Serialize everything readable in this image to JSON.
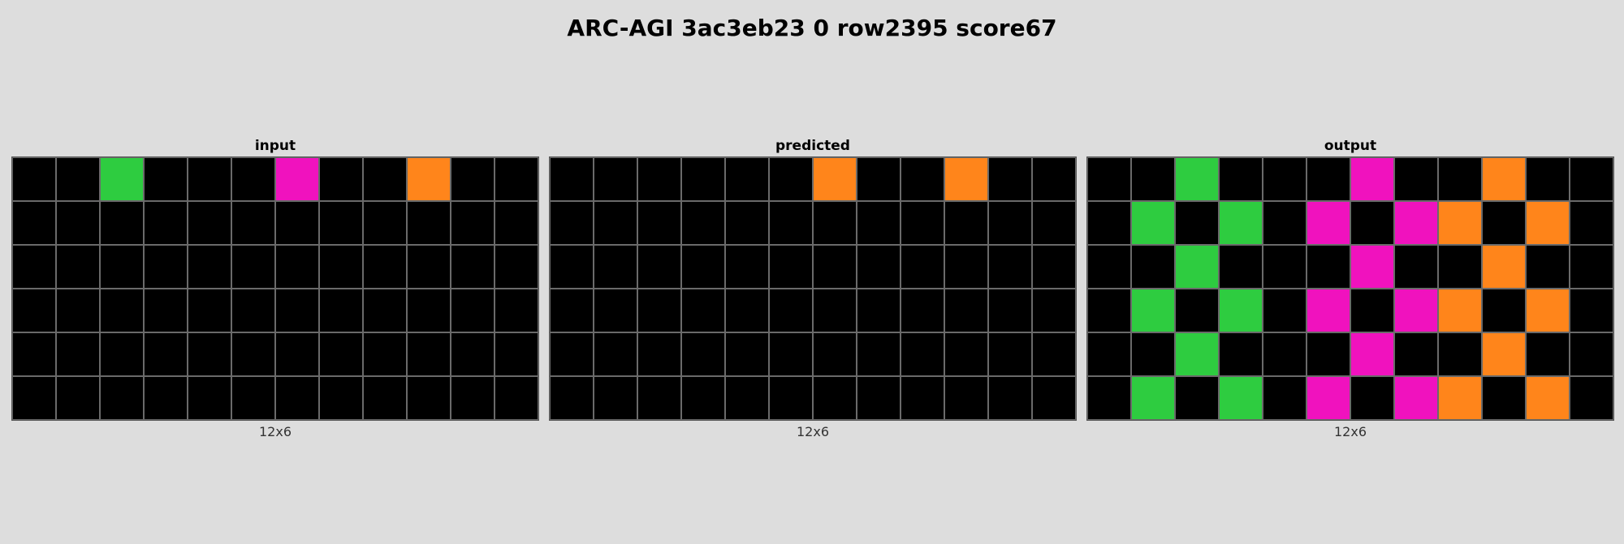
{
  "title": "ARC-AGI 3ac3eb23 0 row2395 score67",
  "palette": {
    "0": "#000000",
    "3": "#2ecc40",
    "6": "#f012be",
    "7": "#ff851b"
  },
  "panels": [
    {
      "title": "input",
      "size": "12x6",
      "grid": [
        [
          0,
          0,
          3,
          0,
          0,
          0,
          6,
          0,
          0,
          7,
          0,
          0
        ],
        [
          0,
          0,
          0,
          0,
          0,
          0,
          0,
          0,
          0,
          0,
          0,
          0
        ],
        [
          0,
          0,
          0,
          0,
          0,
          0,
          0,
          0,
          0,
          0,
          0,
          0
        ],
        [
          0,
          0,
          0,
          0,
          0,
          0,
          0,
          0,
          0,
          0,
          0,
          0
        ],
        [
          0,
          0,
          0,
          0,
          0,
          0,
          0,
          0,
          0,
          0,
          0,
          0
        ],
        [
          0,
          0,
          0,
          0,
          0,
          0,
          0,
          0,
          0,
          0,
          0,
          0
        ]
      ]
    },
    {
      "title": "predicted",
      "size": "12x6",
      "grid": [
        [
          0,
          0,
          0,
          0,
          0,
          0,
          7,
          0,
          0,
          7,
          0,
          0
        ],
        [
          0,
          0,
          0,
          0,
          0,
          0,
          0,
          0,
          0,
          0,
          0,
          0
        ],
        [
          0,
          0,
          0,
          0,
          0,
          0,
          0,
          0,
          0,
          0,
          0,
          0
        ],
        [
          0,
          0,
          0,
          0,
          0,
          0,
          0,
          0,
          0,
          0,
          0,
          0
        ],
        [
          0,
          0,
          0,
          0,
          0,
          0,
          0,
          0,
          0,
          0,
          0,
          0
        ],
        [
          0,
          0,
          0,
          0,
          0,
          0,
          0,
          0,
          0,
          0,
          0,
          0
        ]
      ]
    },
    {
      "title": "output",
      "size": "12x6",
      "grid": [
        [
          0,
          0,
          3,
          0,
          0,
          0,
          6,
          0,
          0,
          7,
          0,
          0
        ],
        [
          0,
          3,
          0,
          3,
          0,
          6,
          0,
          6,
          7,
          0,
          7,
          0
        ],
        [
          0,
          0,
          3,
          0,
          0,
          0,
          6,
          0,
          0,
          7,
          0,
          0
        ],
        [
          0,
          3,
          0,
          3,
          0,
          6,
          0,
          6,
          7,
          0,
          7,
          0
        ],
        [
          0,
          0,
          3,
          0,
          0,
          0,
          6,
          0,
          0,
          7,
          0,
          0
        ],
        [
          0,
          3,
          0,
          3,
          0,
          6,
          0,
          6,
          7,
          0,
          7,
          0
        ]
      ]
    }
  ]
}
